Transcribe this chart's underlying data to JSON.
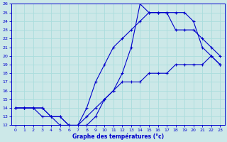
{
  "xlabel": "Graphe des températures (°c)",
  "bg_color": "#cce8e8",
  "line_color": "#0000cc",
  "grid_color": "#aadddd",
  "xlim": [
    -0.5,
    23.5
  ],
  "ylim": [
    12,
    26
  ],
  "xticks": [
    0,
    1,
    2,
    3,
    4,
    5,
    6,
    7,
    8,
    9,
    10,
    11,
    12,
    13,
    14,
    15,
    16,
    17,
    18,
    19,
    20,
    21,
    22,
    23
  ],
  "yticks": [
    12,
    13,
    14,
    15,
    16,
    17,
    18,
    19,
    20,
    21,
    22,
    23,
    24,
    25,
    26
  ],
  "line1_x": [
    0,
    1,
    2,
    3,
    4,
    5,
    6,
    7,
    8,
    9,
    10,
    11,
    12,
    13,
    14,
    15,
    16,
    17,
    18,
    19,
    20,
    21,
    22,
    23
  ],
  "line1_y": [
    14,
    14,
    14,
    14,
    13,
    13,
    12,
    12,
    12,
    13,
    15,
    16,
    18,
    21,
    26,
    25,
    25,
    25,
    25,
    25,
    24,
    21,
    20,
    19
  ],
  "line2_x": [
    0,
    1,
    2,
    3,
    4,
    5,
    6,
    7,
    8,
    9,
    10,
    11,
    12,
    13,
    14,
    15,
    16,
    17,
    18,
    19,
    20,
    21,
    22,
    23
  ],
  "line2_y": [
    14,
    14,
    14,
    13,
    13,
    12,
    12,
    12,
    14,
    17,
    19,
    21,
    22,
    23,
    24,
    25,
    25,
    25,
    23,
    23,
    23,
    22,
    21,
    20
  ],
  "line3_x": [
    0,
    1,
    2,
    3,
    4,
    5,
    6,
    7,
    8,
    9,
    10,
    11,
    12,
    13,
    14,
    15,
    16,
    17,
    18,
    19,
    20,
    21,
    22,
    23
  ],
  "line3_y": [
    14,
    14,
    14,
    14,
    13,
    13,
    12,
    12,
    13,
    14,
    15,
    16,
    17,
    17,
    17,
    18,
    18,
    18,
    19,
    19,
    19,
    19,
    20,
    19
  ]
}
